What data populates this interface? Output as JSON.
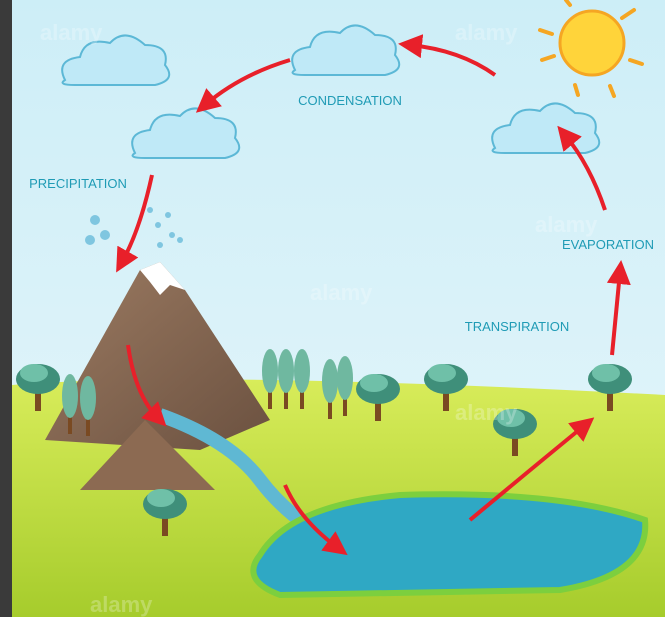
{
  "labels": {
    "condensation": "CONDENSATION",
    "precipitation": "PRECIPITATION",
    "evaporation": "EVAPORATION",
    "transpiration": "TRANSPIRATION"
  },
  "watermark": "alamy"
}
